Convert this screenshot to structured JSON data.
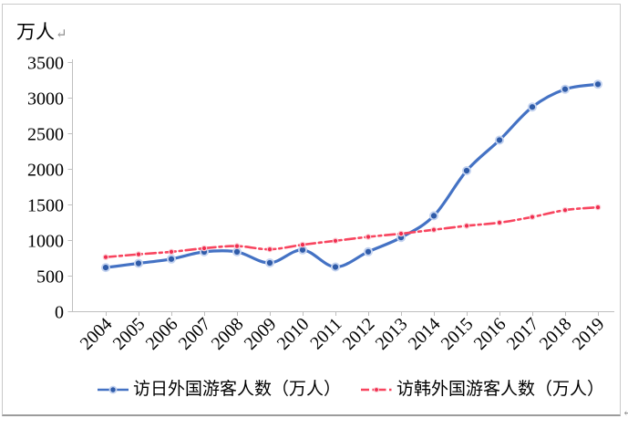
{
  "page": {
    "unit_label": "万人",
    "paragraph_mark": "↵",
    "cell_end_mark": "↵"
  },
  "chart_data": {
    "type": "line",
    "title": "",
    "ylabel": "万人",
    "xlabel": "",
    "x": [
      "2004",
      "2005",
      "2006",
      "2007",
      "2008",
      "2009",
      "2010",
      "2011",
      "2012",
      "2013",
      "2014",
      "2015",
      "2016",
      "2017",
      "2018",
      "2019"
    ],
    "series": [
      {
        "name": "访日外国游客人数（万人）",
        "values": [
          614,
          673,
          733,
          835,
          835,
          679,
          861,
          622,
          836,
          1036,
          1341,
          1974,
          2404,
          2869,
          3119,
          3188
        ],
        "color": "#4472C4",
        "marker_core_color": "#2F5BA8",
        "marker_halo_color": "#C3D2EF",
        "line_style": "solid",
        "marker": "circle"
      },
      {
        "name": "访韩外国游客人数（万人）",
        "values": [
          760,
          800,
          835,
          885,
          915,
          870,
          935,
          990,
          1045,
          1090,
          1145,
          1200,
          1245,
          1325,
          1420,
          1460
        ],
        "color": "#F8455F",
        "marker_core_color": "#EF2D4F",
        "marker_halo_color": "#FBCAD2",
        "line_style": "dash-dot",
        "marker": "dot"
      }
    ],
    "ylim": [
      0,
      3500
    ],
    "ytick_step": 500,
    "yticks": [
      0,
      500,
      1000,
      1500,
      2000,
      2500,
      3000,
      3500
    ],
    "grid": false,
    "legend_position": "bottom",
    "axis_color": "#BFBFBF",
    "text_color": "#000000"
  }
}
